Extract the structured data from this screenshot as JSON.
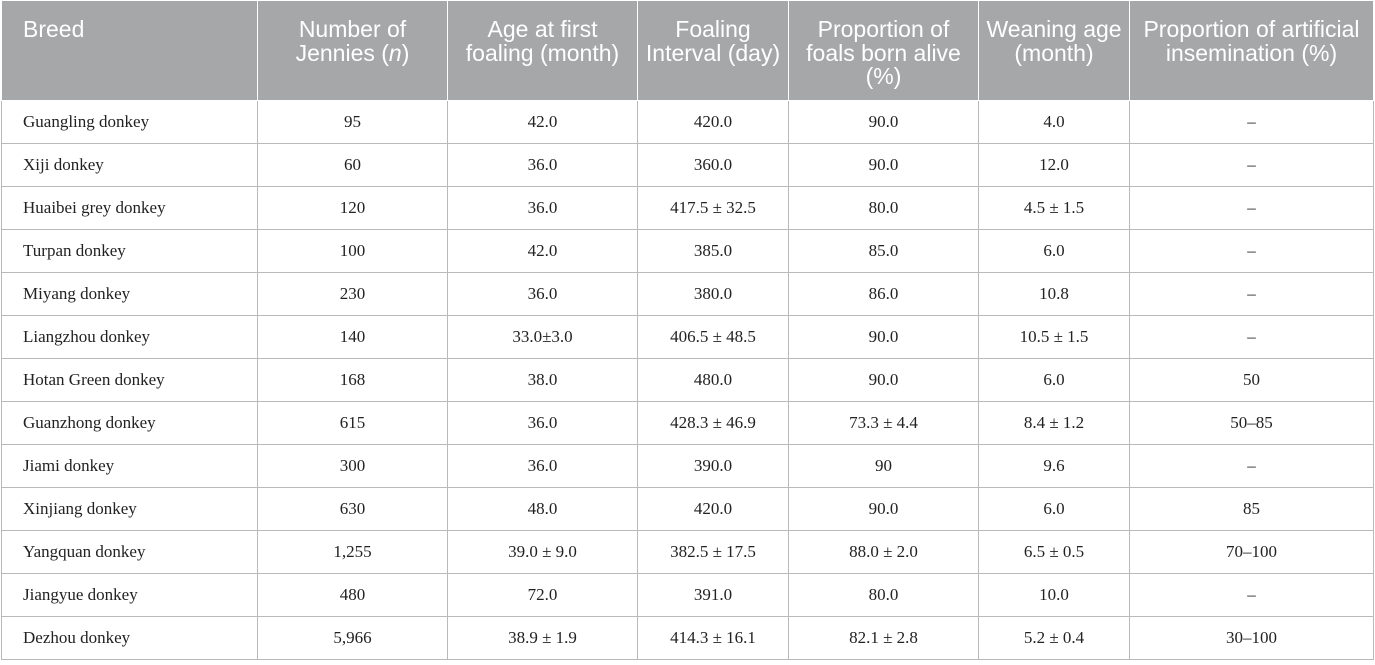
{
  "table": {
    "headers": [
      {
        "text": "Breed",
        "italic": ""
      },
      {
        "pre": "Number of Jennies (",
        "italic": "n",
        "post": ")"
      },
      {
        "text": "Age at first foaling (month)"
      },
      {
        "text": "Foaling Interval (day)"
      },
      {
        "text": "Proportion of foals born alive (%)"
      },
      {
        "text": "Weaning age (month)"
      },
      {
        "text": "Proportion of artificial insemination (%)"
      }
    ],
    "rows": [
      [
        "Guangling donkey",
        "95",
        "42.0",
        "420.0",
        "90.0",
        "4.0",
        "–"
      ],
      [
        "Xiji donkey",
        "60",
        "36.0",
        "360.0",
        "90.0",
        "12.0",
        "–"
      ],
      [
        "Huaibei grey donkey",
        "120",
        "36.0",
        "417.5 ± 32.5",
        "80.0",
        "4.5 ± 1.5",
        "–"
      ],
      [
        "Turpan donkey",
        "100",
        "42.0",
        "385.0",
        "85.0",
        "6.0",
        "–"
      ],
      [
        "Miyang donkey",
        "230",
        "36.0",
        "380.0",
        "86.0",
        "10.8",
        "–"
      ],
      [
        "Liangzhou donkey",
        "140",
        "33.0±3.0",
        "406.5 ± 48.5",
        "90.0",
        "10.5 ± 1.5",
        "–"
      ],
      [
        "Hotan Green donkey",
        "168",
        "38.0",
        "480.0",
        "90.0",
        "6.0",
        "50"
      ],
      [
        "Guanzhong donkey",
        "615",
        "36.0",
        "428.3 ± 46.9",
        "73.3 ± 4.4",
        "8.4 ± 1.2",
        "50–85"
      ],
      [
        "Jiami donkey",
        "300",
        "36.0",
        "390.0",
        "90",
        "9.6",
        "–"
      ],
      [
        "Xinjiang donkey",
        "630",
        "48.0",
        "420.0",
        "90.0",
        "6.0",
        "85"
      ],
      [
        "Yangquan donkey",
        "1,255",
        "39.0 ± 9.0",
        "382.5 ± 17.5",
        "88.0 ± 2.0",
        "6.5 ± 0.5",
        "70–100"
      ],
      [
        "Jiangyue donkey",
        "480",
        "72.0",
        "391.0",
        "80.0",
        "10.0",
        "–"
      ],
      [
        "Dezhou donkey",
        "5,966",
        "38.9 ± 1.9",
        "414.3 ± 16.1",
        "82.1 ± 2.8",
        "5.2 ± 0.4",
        "30–100"
      ]
    ]
  }
}
